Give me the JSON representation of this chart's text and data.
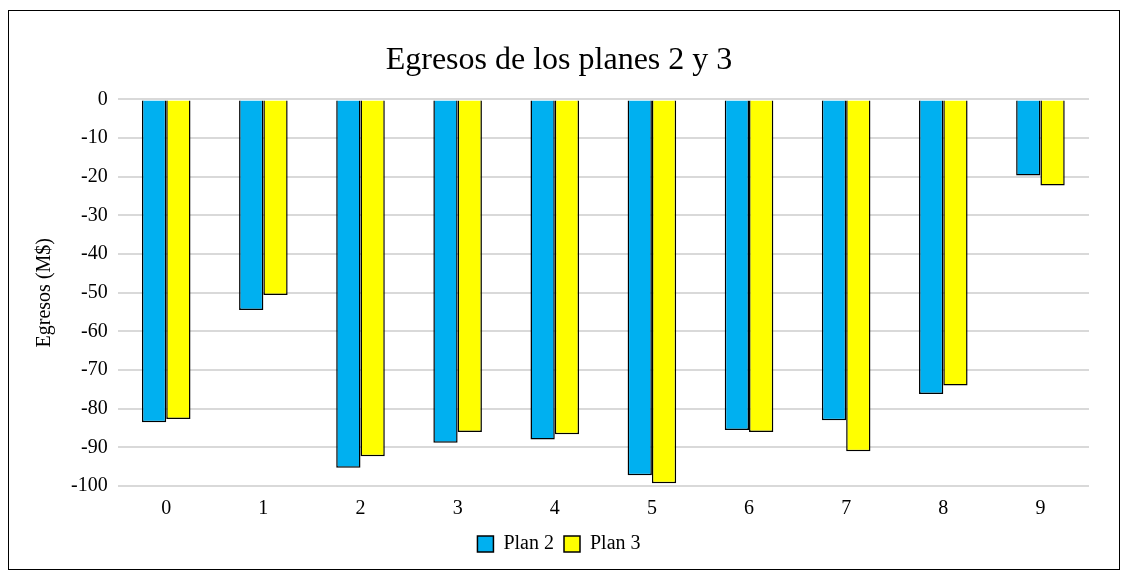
{
  "chart_data": {
    "type": "bar",
    "title": "Egresos de los planes 2 y 3",
    "ylabel": "Egresos (M$)",
    "categories": [
      "0",
      "1",
      "2",
      "3",
      "4",
      "5",
      "6",
      "7",
      "8",
      "9"
    ],
    "series": [
      {
        "name": "Plan 2",
        "color": "#00b0f0",
        "values": [
          -83.5,
          -54.5,
          -95.3,
          -88.8,
          -88,
          -97.2,
          -85.5,
          -83,
          -76.2,
          -19.7
        ]
      },
      {
        "name": "Plan 3",
        "color": "#ffff00",
        "values": [
          -82.7,
          -50.6,
          -92.3,
          -86,
          -86.6,
          -99.3,
          -86,
          -91,
          -74,
          -22.3
        ]
      }
    ],
    "ylim": [
      -100,
      0
    ],
    "yticks": [
      0,
      -10,
      -20,
      -30,
      -40,
      -50,
      -60,
      -70,
      -80,
      -90,
      -100
    ],
    "grid": "y",
    "legend": "bottom"
  }
}
